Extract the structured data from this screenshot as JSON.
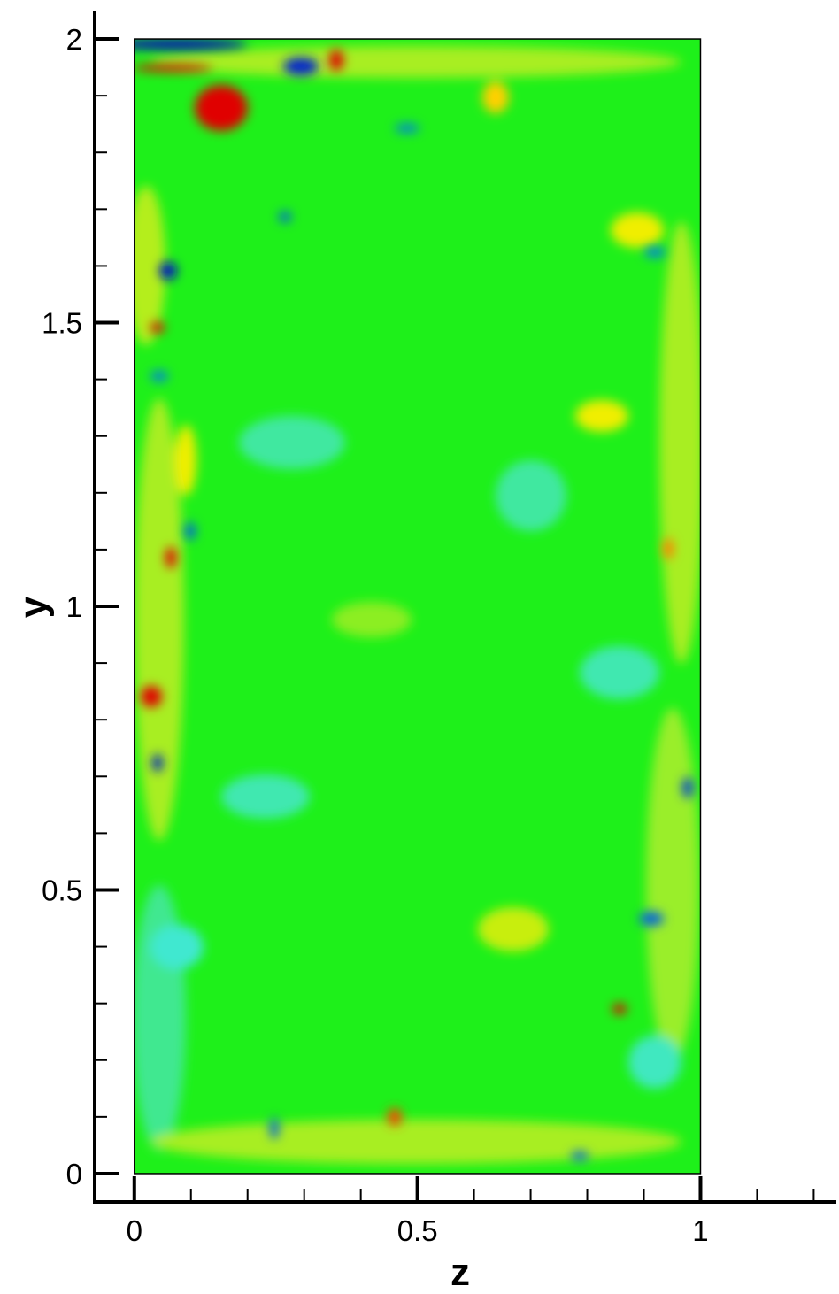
{
  "chart_data": {
    "type": "contour",
    "xlabel": "z",
    "ylabel": "y",
    "xlim": [
      -0.07,
      1.24
    ],
    "ylim": [
      -0.05,
      2.05
    ],
    "xticks": [
      0,
      0.5,
      1
    ],
    "yticks": [
      0,
      0.5,
      1,
      1.5,
      2
    ],
    "xminorticks": [
      0.1,
      0.2,
      0.3,
      0.4,
      0.6,
      0.7,
      0.8,
      0.9,
      1.1,
      1.2
    ],
    "yminorticks": [
      0.1,
      0.2,
      0.3,
      0.4,
      0.6,
      0.7,
      0.8,
      0.9,
      1.1,
      1.2,
      1.3,
      1.4,
      1.6,
      1.7,
      1.8,
      1.9
    ],
    "domain": {
      "x": [
        0,
        1
      ],
      "y": [
        0,
        2
      ]
    }
  }
}
